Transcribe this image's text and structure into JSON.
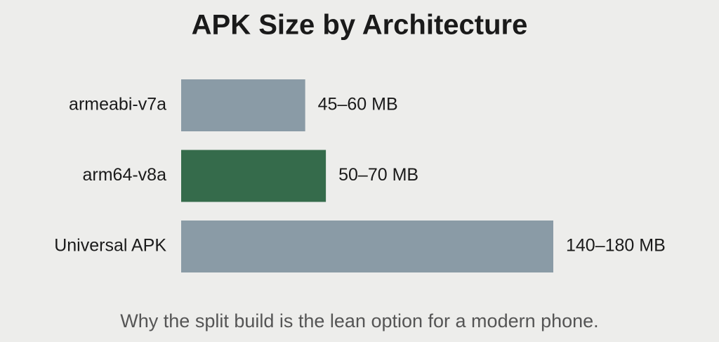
{
  "chart_data": {
    "type": "hbar",
    "title": "APK Size by Architecture",
    "categories": [
      "armeabi-v7a",
      "arm64-v8a",
      "Universal APK"
    ],
    "values": [
      60,
      70,
      180
    ],
    "value_labels": [
      "45–60 MB",
      "50–70 MB",
      "140–180 MB"
    ],
    "colors": [
      "#8a9ba6",
      "#356b4b",
      "#8a9ba6"
    ],
    "caption": "Why the split build is the lean option for a modern phone."
  }
}
